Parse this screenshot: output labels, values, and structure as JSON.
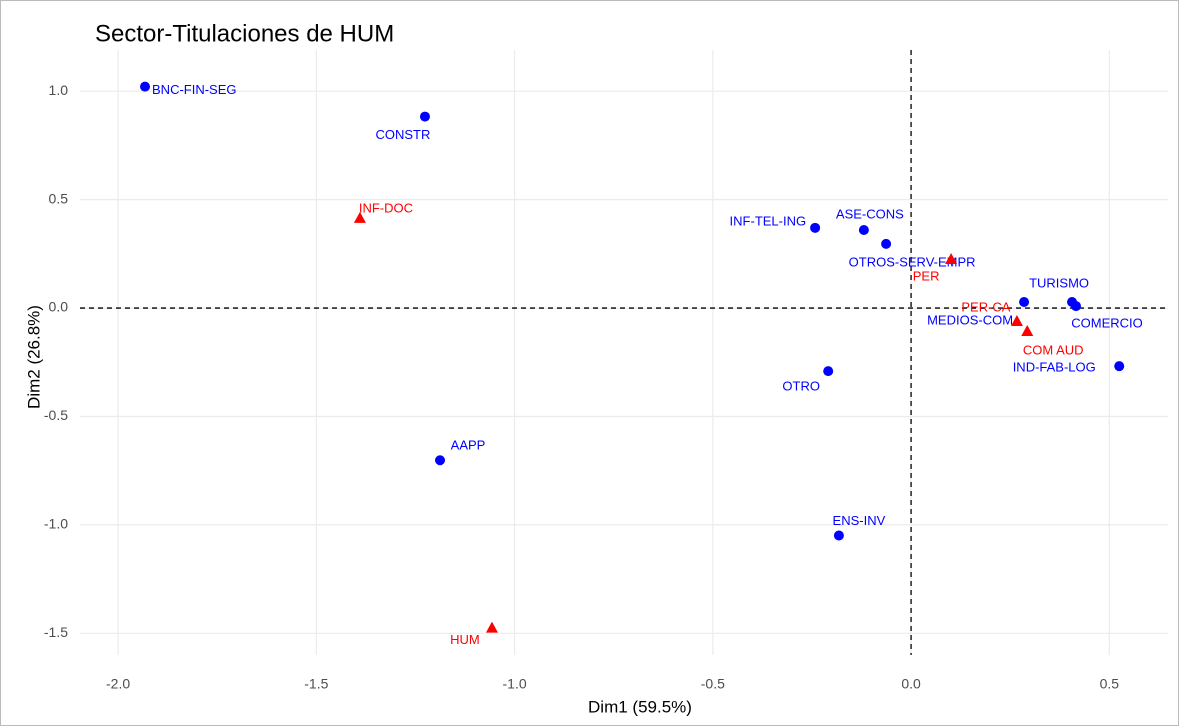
{
  "chart_data": {
    "type": "scatter",
    "title": "Sector-Titulaciones de HUM",
    "xlabel": "Dim1 (59.5%)",
    "ylabel": "Dim2 (26.8%)",
    "xlim": [
      -2.096,
      0.648
    ],
    "ylim": [
      -1.6,
      1.19
    ],
    "xticks": [
      {
        "value": -2,
        "label": "-2.0"
      },
      -1.5,
      {
        "value": -1,
        "label": "-1.0"
      },
      -0.5,
      {
        "value": 0,
        "label": "0.0"
      },
      0.5
    ],
    "yticks": [
      {
        "value": 1,
        "label": "1.0"
      },
      0.5,
      {
        "value": 0,
        "label": "0.0"
      },
      -0.5,
      {
        "value": -1,
        "label": "-1.0"
      },
      -1.5
    ],
    "grid": true,
    "hline": 0,
    "vline": 0,
    "series": [
      {
        "color": "#0000ff",
        "marker": "circle",
        "labels": [
          "BNC-FIN-SEG",
          "CONSTR",
          "INF-TEL-ING",
          "ASE-CONS",
          "OTROS-SERV-EMPR",
          "TURISMO",
          "MEDIOS-COM",
          "COMERCIO",
          "IND-FAB-LOG",
          "OTRO",
          "AAPP",
          "ENS-INV"
        ],
        "x": [
          -1.932,
          -1.226,
          -0.242,
          -0.119,
          -0.063,
          0.406,
          0.285,
          0.416,
          0.525,
          -0.209,
          -1.188,
          -0.182
        ],
        "values": [
          1.021,
          0.883,
          0.37,
          0.36,
          0.296,
          0.028,
          0.028,
          0.009,
          -0.268,
          -0.291,
          -0.702,
          -1.049
        ]
      },
      {
        "color": "#ff0000",
        "marker": "triangle",
        "labels": [
          "INF-DOC",
          "PER",
          "PER-CA",
          "COM AUD",
          "HUM"
        ],
        "x": [
          -1.39,
          0.101,
          0.267,
          0.293,
          -1.057
        ],
        "values": [
          0.416,
          0.226,
          -0.06,
          -0.106,
          -1.474
        ]
      }
    ]
  }
}
